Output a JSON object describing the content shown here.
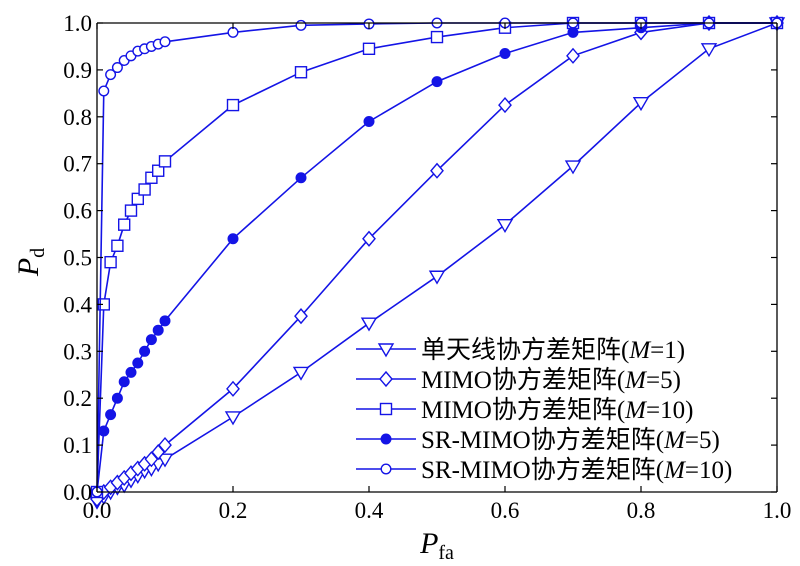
{
  "chart_data": {
    "type": "line",
    "title": "",
    "xlabel": {
      "main": "P",
      "sub": "fa"
    },
    "ylabel": {
      "main": "P",
      "sub": "d"
    },
    "xlim": [
      0,
      1
    ],
    "ylim": [
      0,
      1
    ],
    "x_ticks": [
      "0.0",
      "0.2",
      "0.4",
      "0.6",
      "0.8",
      "1.0"
    ],
    "y_ticks": [
      "0.0",
      "0.1",
      "0.2",
      "0.3",
      "0.4",
      "0.5",
      "0.6",
      "0.7",
      "0.8",
      "0.9",
      "1.0"
    ],
    "grid": false,
    "legend_position": "bottom-right",
    "line_color": "#1414e6",
    "series": [
      {
        "name": "单天线协方差矩阵(M=1)",
        "legend": {
          "pre": "单天线协方差矩阵(",
          "italic": "M",
          "post": "=1)"
        },
        "marker": "triangle-down",
        "x": [
          0,
          0.01,
          0.02,
          0.03,
          0.04,
          0.05,
          0.06,
          0.07,
          0.08,
          0.09,
          0.1,
          0.2,
          0.3,
          0.4,
          0.5,
          0.6,
          0.7,
          0.8,
          0.9,
          1.0
        ],
        "y": [
          -0.02,
          -0.01,
          0.0,
          0.01,
          0.015,
          0.025,
          0.035,
          0.045,
          0.05,
          0.06,
          0.07,
          0.16,
          0.255,
          0.36,
          0.46,
          0.57,
          0.695,
          0.83,
          0.945,
          1.0
        ]
      },
      {
        "name": "MIMO协方差矩阵(M=5)",
        "legend": {
          "pre": "MIMO协方差矩阵(",
          "italic": "M",
          "post": "=5)"
        },
        "marker": "diamond",
        "x": [
          0,
          0.01,
          0.02,
          0.03,
          0.04,
          0.05,
          0.06,
          0.07,
          0.08,
          0.09,
          0.1,
          0.2,
          0.3,
          0.4,
          0.5,
          0.6,
          0.7,
          0.8,
          0.9,
          1.0
        ],
        "y": [
          -0.015,
          0.0,
          0.01,
          0.02,
          0.03,
          0.04,
          0.05,
          0.06,
          0.07,
          0.085,
          0.1,
          0.22,
          0.375,
          0.54,
          0.685,
          0.825,
          0.93,
          0.98,
          1.0,
          1.0
        ]
      },
      {
        "name": "MIMO协方差矩阵(M=10)",
        "legend": {
          "pre": "MIMO协方差矩阵(",
          "italic": "M",
          "post": "=10)"
        },
        "marker": "square",
        "x": [
          0,
          0.01,
          0.02,
          0.03,
          0.04,
          0.05,
          0.06,
          0.07,
          0.08,
          0.09,
          0.1,
          0.2,
          0.3,
          0.4,
          0.5,
          0.6,
          0.7,
          0.8,
          0.9,
          1.0
        ],
        "y": [
          0.0,
          0.4,
          0.49,
          0.525,
          0.57,
          0.6,
          0.625,
          0.645,
          0.67,
          0.685,
          0.705,
          0.825,
          0.895,
          0.945,
          0.97,
          0.99,
          1.0,
          1.0,
          1.0,
          1.0
        ]
      },
      {
        "name": "SR-MIMO协方差矩阵(M=5)",
        "legend": {
          "pre": "SR-MIMO协方差矩阵(",
          "italic": "M",
          "post": "=5)"
        },
        "marker": "filled-circle",
        "x": [
          0,
          0.01,
          0.02,
          0.03,
          0.04,
          0.05,
          0.06,
          0.07,
          0.08,
          0.09,
          0.1,
          0.2,
          0.3,
          0.4,
          0.5,
          0.6,
          0.7,
          0.8,
          0.9,
          1.0
        ],
        "y": [
          0.0,
          0.13,
          0.165,
          0.2,
          0.235,
          0.255,
          0.275,
          0.3,
          0.325,
          0.345,
          0.365,
          0.54,
          0.67,
          0.79,
          0.875,
          0.935,
          0.98,
          0.99,
          1.0,
          1.0
        ]
      },
      {
        "name": "SR-MIMO协方差矩阵(M=10)",
        "legend": {
          "pre": "SR-MIMO协方差矩阵(",
          "italic": "M",
          "post": "=10)"
        },
        "marker": "circle",
        "x": [
          0,
          0.01,
          0.02,
          0.03,
          0.04,
          0.05,
          0.06,
          0.07,
          0.08,
          0.09,
          0.1,
          0.2,
          0.3,
          0.4,
          0.5,
          0.6,
          0.7,
          0.8,
          0.9,
          1.0
        ],
        "y": [
          0.0,
          0.855,
          0.89,
          0.905,
          0.92,
          0.93,
          0.94,
          0.945,
          0.95,
          0.955,
          0.96,
          0.98,
          0.995,
          0.998,
          1.0,
          1.0,
          1.0,
          1.0,
          1.0,
          1.0
        ]
      }
    ]
  }
}
